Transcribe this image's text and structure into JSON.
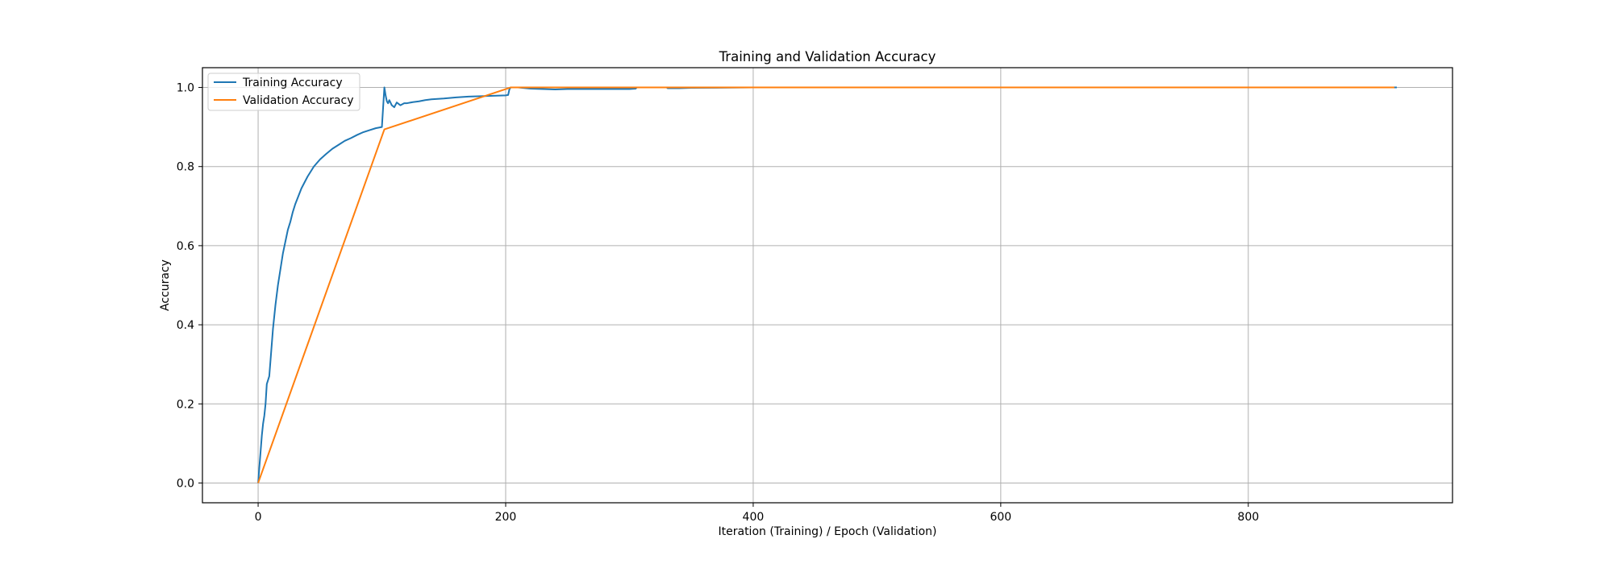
{
  "chart_data": {
    "type": "line",
    "title": "Training and Validation Accuracy",
    "xlabel": "Iteration (Training) / Epoch (Validation)",
    "ylabel": "Accuracy",
    "xlim": [
      -45,
      965
    ],
    "ylim": [
      -0.05,
      1.05
    ],
    "xticks": [
      0,
      200,
      400,
      600,
      800
    ],
    "yticks": [
      0.0,
      0.2,
      0.4,
      0.6,
      0.8,
      1.0
    ],
    "xtick_labels": [
      "0",
      "200",
      "400",
      "600",
      "800"
    ],
    "ytick_labels": [
      "0.0",
      "0.2",
      "0.4",
      "0.6",
      "0.8",
      "1.0"
    ],
    "grid": true,
    "legend_position": "top-left",
    "series": [
      {
        "name": "Training Accuracy",
        "color": "#1f77b4",
        "x": [
          0,
          1,
          2,
          3,
          4,
          5,
          6,
          7,
          8,
          9,
          10,
          12,
          14,
          16,
          18,
          20,
          22,
          24,
          26,
          28,
          30,
          35,
          40,
          45,
          50,
          55,
          60,
          65,
          70,
          75,
          80,
          85,
          90,
          95,
          100,
          101,
          102,
          103,
          104,
          105,
          106,
          108,
          110,
          112,
          115,
          118,
          120,
          125,
          130,
          135,
          140,
          150,
          160,
          170,
          180,
          190,
          200,
          202,
          203,
          204,
          210,
          220,
          230,
          240,
          250,
          260,
          280,
          300,
          305,
          306,
          320,
          330,
          331,
          340,
          350,
          400,
          500,
          600,
          700,
          800,
          920
        ],
        "y": [
          0.0,
          0.04,
          0.08,
          0.12,
          0.15,
          0.17,
          0.2,
          0.25,
          0.26,
          0.27,
          0.31,
          0.39,
          0.45,
          0.5,
          0.54,
          0.58,
          0.61,
          0.64,
          0.66,
          0.685,
          0.705,
          0.745,
          0.775,
          0.8,
          0.818,
          0.832,
          0.845,
          0.855,
          0.865,
          0.872,
          0.88,
          0.887,
          0.892,
          0.897,
          0.9,
          0.95,
          1.0,
          0.98,
          0.965,
          0.96,
          0.968,
          0.955,
          0.95,
          0.962,
          0.955,
          0.96,
          0.96,
          0.963,
          0.965,
          0.968,
          0.97,
          0.972,
          0.975,
          0.977,
          0.978,
          0.979,
          0.98,
          0.981,
          0.995,
          1.0,
          1.0,
          0.997,
          0.996,
          0.995,
          0.996,
          0.996,
          0.996,
          0.996,
          0.997,
          1.0,
          1.0,
          1.0,
          0.998,
          0.998,
          0.999,
          1.0,
          1.0,
          1.0,
          1.0,
          1.0,
          1.0
        ]
      },
      {
        "name": "Validation Accuracy",
        "color": "#ff7f0e",
        "x": [
          0,
          102,
          204,
          306,
          408,
          510,
          612,
          714,
          816,
          918
        ],
        "y": [
          0.0,
          0.894,
          1.0,
          1.0,
          1.0,
          1.0,
          1.0,
          1.0,
          1.0,
          1.0
        ]
      }
    ]
  }
}
